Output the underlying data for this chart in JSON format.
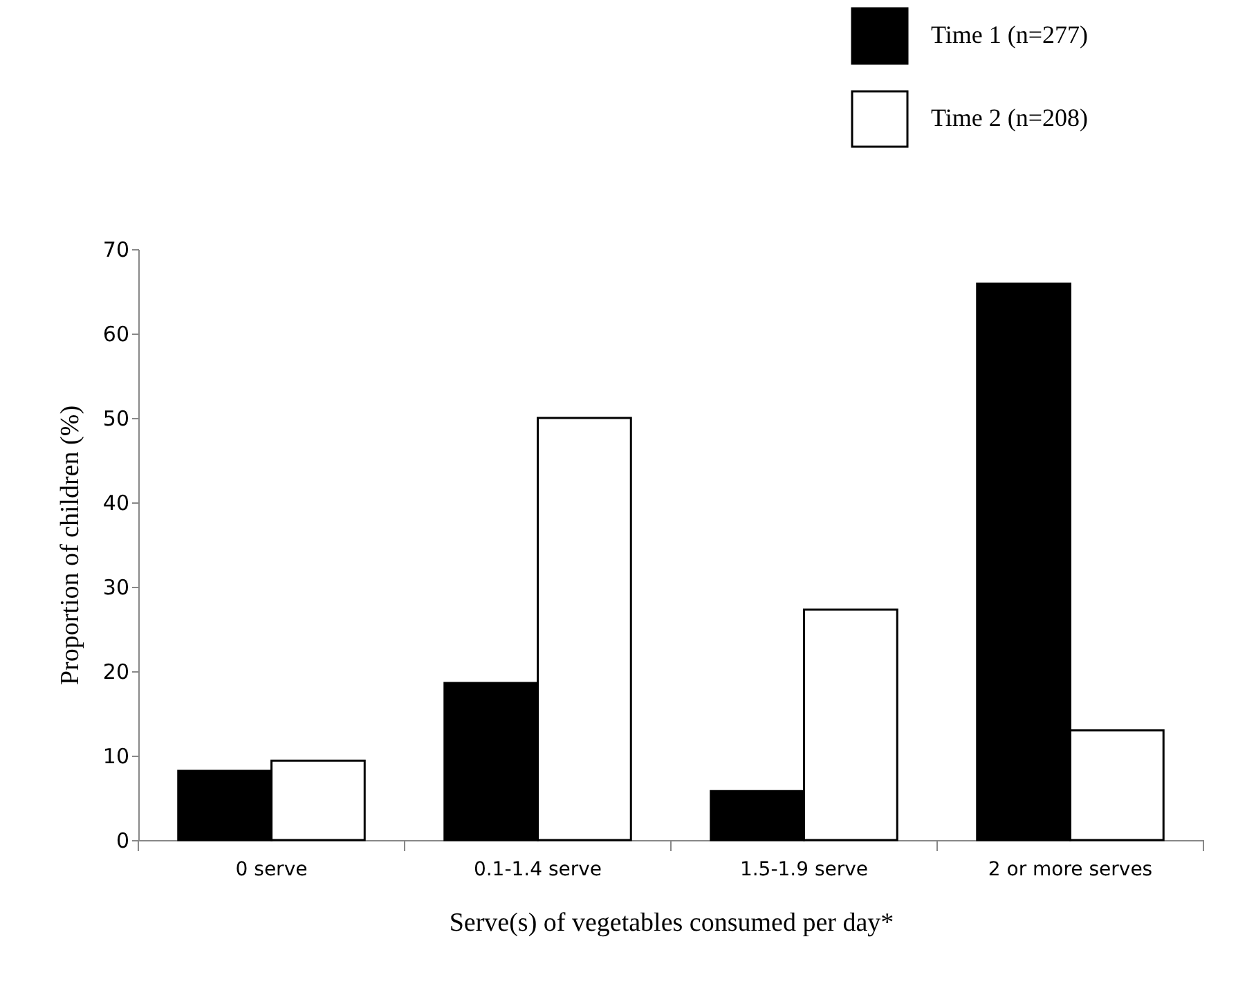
{
  "chart_data": {
    "type": "bar",
    "xlabel": "Serve(s) of vegetables consumed per day*",
    "ylabel": "Proportion of children (%)",
    "categories": [
      "0 serve",
      "0.1-1.4 serve",
      "1.5-1.9 serve",
      "2 or more serves"
    ],
    "series": [
      {
        "name": "Time 1 (n=277)",
        "color": "#000000",
        "values": [
          8.2,
          18.6,
          5.8,
          65.9
        ]
      },
      {
        "name": "Time 2 (n=208)",
        "color": "#ffffff",
        "values": [
          9.4,
          50,
          27.3,
          13.0
        ]
      }
    ],
    "ylim": [
      0,
      70
    ],
    "yticks": [
      0,
      10,
      20,
      30,
      40,
      50,
      60,
      70
    ],
    "grid": false,
    "legend": "top right"
  }
}
